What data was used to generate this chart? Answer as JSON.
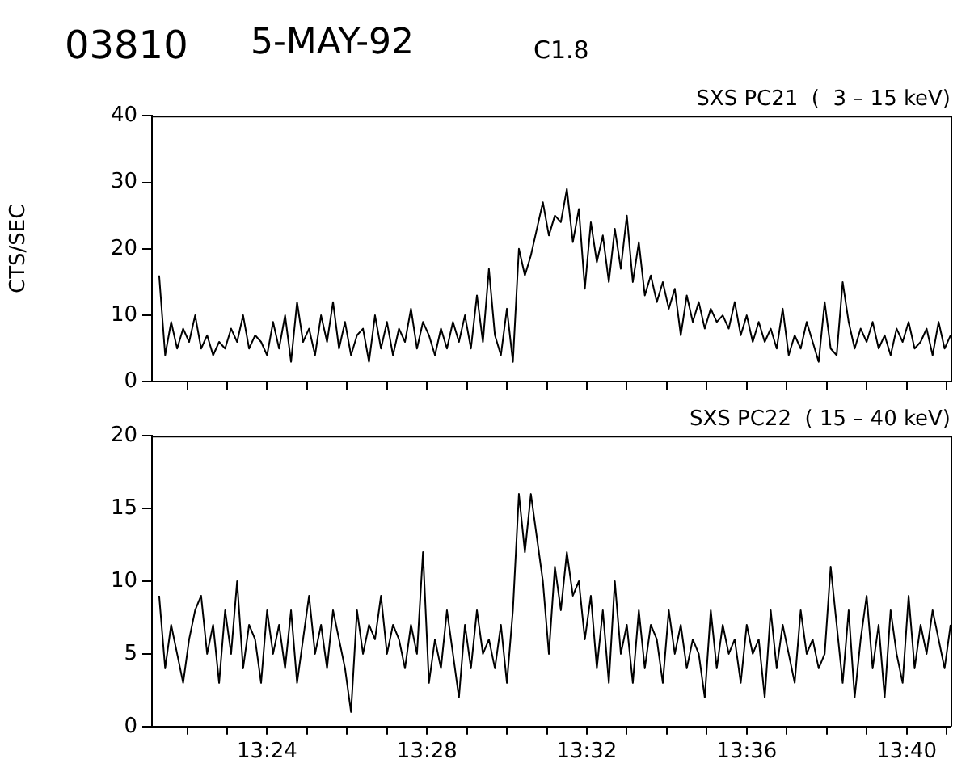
{
  "chart_data": [
    {
      "type": "line",
      "title": "SXS PC21  (  3 – 15 keV)",
      "ylabel": "CTS/SEC",
      "annotations": [
        "03810",
        "5-MAY-92",
        "C1.8"
      ],
      "x": [
        13.355,
        13.3575,
        13.36,
        13.3625,
        13.365,
        13.3675,
        13.37,
        13.3725,
        13.375,
        13.3775,
        13.38,
        13.3825,
        13.385,
        13.3875,
        13.39,
        13.3925,
        13.395,
        13.3975,
        13.4,
        13.4025,
        13.405,
        13.4075,
        13.41,
        13.4125,
        13.415,
        13.4175,
        13.42,
        13.4225,
        13.425,
        13.4275,
        13.43,
        13.4325,
        13.435,
        13.4375,
        13.44,
        13.4425,
        13.445,
        13.4475,
        13.45,
        13.4525,
        13.455,
        13.4575,
        13.46,
        13.4625,
        13.465,
        13.4675,
        13.47,
        13.4725,
        13.475,
        13.4775,
        13.48,
        13.4825,
        13.485,
        13.4875,
        13.49,
        13.4925,
        13.495,
        13.4975,
        13.5,
        13.5025,
        13.505,
        13.5075,
        13.51,
        13.5125,
        13.515,
        13.5175,
        13.52,
        13.5225,
        13.525,
        13.5275,
        13.53,
        13.5325,
        13.535,
        13.5375,
        13.54,
        13.5425,
        13.545,
        13.5475,
        13.55,
        13.5525,
        13.555,
        13.5575,
        13.56,
        13.5625,
        13.565,
        13.5675,
        13.57,
        13.5725,
        13.575,
        13.5775,
        13.58,
        13.5825,
        13.585,
        13.5875,
        13.59,
        13.5925,
        13.595,
        13.5975,
        13.6,
        13.6025,
        13.605,
        13.6075,
        13.61,
        13.6125,
        13.615,
        13.6175,
        13.62,
        13.6225,
        13.625,
        13.6275,
        13.63,
        13.6325,
        13.635,
        13.6375,
        13.64,
        13.6425,
        13.645,
        13.6475,
        13.65,
        13.6525,
        13.655,
        13.6575,
        13.66,
        13.6625,
        13.665,
        13.6675,
        13.67,
        13.6725,
        13.675,
        13.6775,
        13.68,
        13.6825,
        13.685
      ],
      "series": [
        {
          "color": "#000000",
          "values": [
            16,
            4,
            9,
            5,
            8,
            6,
            10,
            5,
            7,
            4,
            6,
            5,
            8,
            6,
            10,
            5,
            7,
            6,
            4,
            9,
            5,
            10,
            3,
            12,
            6,
            8,
            4,
            10,
            6,
            12,
            5,
            9,
            4,
            7,
            8,
            3,
            10,
            5,
            9,
            4,
            8,
            6,
            11,
            5,
            9,
            7,
            4,
            8,
            5,
            9,
            6,
            10,
            5,
            13,
            6,
            17,
            7,
            4,
            11,
            3,
            20,
            16,
            19,
            23,
            27,
            22,
            25,
            24,
            29,
            21,
            26,
            14,
            24,
            18,
            22,
            15,
            23,
            17,
            25,
            15,
            21,
            13,
            16,
            12,
            15,
            11,
            14,
            7,
            13,
            9,
            12,
            8,
            11,
            9,
            10,
            8,
            12,
            7,
            10,
            6,
            9,
            6,
            8,
            5,
            11,
            4,
            7,
            5,
            9,
            6,
            3,
            12,
            5,
            4,
            15,
            9,
            5,
            8,
            6,
            9,
            5,
            7,
            4,
            8,
            6,
            9,
            5,
            6,
            8,
            4,
            9,
            5,
            7
          ]
        }
      ],
      "xlim": [
        13.352,
        13.685
      ],
      "xticks": [
        {
          "value": 13.3667,
          "label": null
        },
        {
          "value": 13.3833,
          "label": null
        },
        {
          "value": 13.4,
          "label": null
        },
        {
          "value": 13.4167,
          "label": null
        },
        {
          "value": 13.4333,
          "label": null
        },
        {
          "value": 13.45,
          "label": null
        },
        {
          "value": 13.4667,
          "label": null
        },
        {
          "value": 13.4833,
          "label": null
        },
        {
          "value": 13.5,
          "label": null
        },
        {
          "value": 13.5167,
          "label": null
        },
        {
          "value": 13.5333,
          "label": null
        },
        {
          "value": 13.55,
          "label": null
        },
        {
          "value": 13.5667,
          "label": null
        },
        {
          "value": 13.5833,
          "label": null
        },
        {
          "value": 13.6,
          "label": null
        },
        {
          "value": 13.6167,
          "label": null
        },
        {
          "value": 13.6333,
          "label": null
        },
        {
          "value": 13.65,
          "label": null
        },
        {
          "value": 13.6667,
          "label": null
        },
        {
          "value": 13.6833,
          "label": null
        }
      ],
      "ylim": [
        0,
        40
      ],
      "yticks": [
        0,
        10,
        20,
        30,
        40
      ],
      "tick_labels": "y",
      "marker": "none",
      "line_style": "solid",
      "grid": false,
      "legend": false
    },
    {
      "type": "line",
      "title": "SXS PC22  ( 15 – 40 keV)",
      "x": [
        13.355,
        13.3575,
        13.36,
        13.3625,
        13.365,
        13.3675,
        13.37,
        13.3725,
        13.375,
        13.3775,
        13.38,
        13.3825,
        13.385,
        13.3875,
        13.39,
        13.3925,
        13.395,
        13.3975,
        13.4,
        13.4025,
        13.405,
        13.4075,
        13.41,
        13.4125,
        13.415,
        13.4175,
        13.42,
        13.4225,
        13.425,
        13.4275,
        13.43,
        13.4325,
        13.435,
        13.4375,
        13.44,
        13.4425,
        13.445,
        13.4475,
        13.45,
        13.4525,
        13.455,
        13.4575,
        13.46,
        13.4625,
        13.465,
        13.4675,
        13.47,
        13.4725,
        13.475,
        13.4775,
        13.48,
        13.4825,
        13.485,
        13.4875,
        13.49,
        13.4925,
        13.495,
        13.4975,
        13.5,
        13.5025,
        13.505,
        13.5075,
        13.51,
        13.5125,
        13.515,
        13.5175,
        13.52,
        13.5225,
        13.525,
        13.5275,
        13.53,
        13.5325,
        13.535,
        13.5375,
        13.54,
        13.5425,
        13.545,
        13.5475,
        13.55,
        13.5525,
        13.555,
        13.5575,
        13.56,
        13.5625,
        13.565,
        13.5675,
        13.57,
        13.5725,
        13.575,
        13.5775,
        13.58,
        13.5825,
        13.585,
        13.5875,
        13.59,
        13.5925,
        13.595,
        13.5975,
        13.6,
        13.6025,
        13.605,
        13.6075,
        13.61,
        13.6125,
        13.615,
        13.6175,
        13.62,
        13.6225,
        13.625,
        13.6275,
        13.63,
        13.6325,
        13.635,
        13.6375,
        13.64,
        13.6425,
        13.645,
        13.6475,
        13.65,
        13.6525,
        13.655,
        13.6575,
        13.66,
        13.6625,
        13.665,
        13.6675,
        13.67,
        13.6725,
        13.675,
        13.6775,
        13.68,
        13.6825,
        13.685
      ],
      "series": [
        {
          "color": "#000000",
          "values": [
            9,
            4,
            7,
            5,
            3,
            6,
            8,
            9,
            5,
            7,
            3,
            8,
            5,
            10,
            4,
            7,
            6,
            3,
            8,
            5,
            7,
            4,
            8,
            3,
            6,
            9,
            5,
            7,
            4,
            8,
            6,
            4,
            1,
            8,
            5,
            7,
            6,
            9,
            5,
            7,
            6,
            4,
            7,
            5,
            12,
            3,
            6,
            4,
            8,
            5,
            2,
            7,
            4,
            8,
            5,
            6,
            4,
            7,
            3,
            8,
            16,
            12,
            16,
            13,
            10,
            5,
            11,
            8,
            12,
            9,
            10,
            6,
            9,
            4,
            8,
            3,
            10,
            5,
            7,
            3,
            8,
            4,
            7,
            6,
            3,
            8,
            5,
            7,
            4,
            6,
            5,
            2,
            8,
            4,
            7,
            5,
            6,
            3,
            7,
            5,
            6,
            2,
            8,
            4,
            7,
            5,
            3,
            8,
            5,
            6,
            4,
            5,
            11,
            7,
            3,
            8,
            2,
            6,
            9,
            4,
            7,
            2,
            8,
            5,
            3,
            9,
            4,
            7,
            5,
            8,
            6,
            4,
            7
          ]
        }
      ],
      "xlim": [
        13.352,
        13.685
      ],
      "xticks": [
        {
          "value": 13.3667,
          "label": null
        },
        {
          "value": 13.3833,
          "label": null
        },
        {
          "value": 13.4,
          "label": "13:24"
        },
        {
          "value": 13.4167,
          "label": null
        },
        {
          "value": 13.4333,
          "label": null
        },
        {
          "value": 13.45,
          "label": null
        },
        {
          "value": 13.4667,
          "label": "13:28"
        },
        {
          "value": 13.4833,
          "label": null
        },
        {
          "value": 13.5,
          "label": null
        },
        {
          "value": 13.5167,
          "label": null
        },
        {
          "value": 13.5333,
          "label": "13:32"
        },
        {
          "value": 13.55,
          "label": null
        },
        {
          "value": 13.5667,
          "label": null
        },
        {
          "value": 13.5833,
          "label": null
        },
        {
          "value": 13.6,
          "label": "13:36"
        },
        {
          "value": 13.6167,
          "label": null
        },
        {
          "value": 13.6333,
          "label": null
        },
        {
          "value": 13.65,
          "label": null
        },
        {
          "value": 13.6667,
          "label": "13:40"
        },
        {
          "value": 13.6833,
          "label": null
        }
      ],
      "ylim": [
        0,
        20
      ],
      "yticks": [
        0,
        5,
        10,
        15,
        20
      ],
      "marker": "none",
      "line_style": "solid",
      "grid": false,
      "legend": false
    }
  ]
}
